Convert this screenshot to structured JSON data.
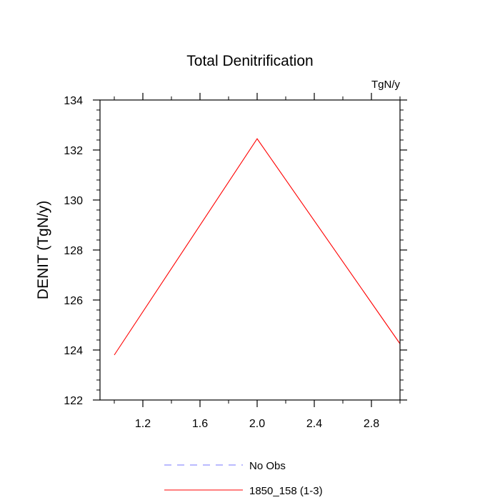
{
  "chart_data": {
    "type": "line",
    "title": "Total Denitrification",
    "units_label": "TgN/y",
    "ylabel": "DENIT  (TgN/y)",
    "xlabel": "",
    "xlim": [
      0.9,
      3.0
    ],
    "ylim": [
      122,
      134
    ],
    "x_ticks": [
      1.2,
      1.6,
      2.0,
      2.4,
      2.8
    ],
    "x_tick_labels": [
      "1.2",
      "1.6",
      "2.0",
      "2.4",
      "2.8"
    ],
    "y_ticks": [
      122,
      124,
      126,
      128,
      130,
      132,
      134
    ],
    "y_tick_labels": [
      "122",
      "124",
      "126",
      "128",
      "130",
      "132",
      "134"
    ],
    "x_minor_step": 0.2,
    "y_minor_step": 0.4,
    "grid": false,
    "legend_position": "bottom",
    "series": [
      {
        "name": "1850_158 (1-3)",
        "color": "#ff0000",
        "dash": "solid",
        "x": [
          1.0,
          2.0,
          3.0
        ],
        "y": [
          123.8,
          132.45,
          124.25
        ]
      }
    ],
    "legend": [
      {
        "label": "No Obs",
        "color": "#7777ff",
        "dash": "dashed"
      },
      {
        "label": "1850_158 (1-3)",
        "color": "#ff0000",
        "dash": "solid"
      }
    ]
  }
}
